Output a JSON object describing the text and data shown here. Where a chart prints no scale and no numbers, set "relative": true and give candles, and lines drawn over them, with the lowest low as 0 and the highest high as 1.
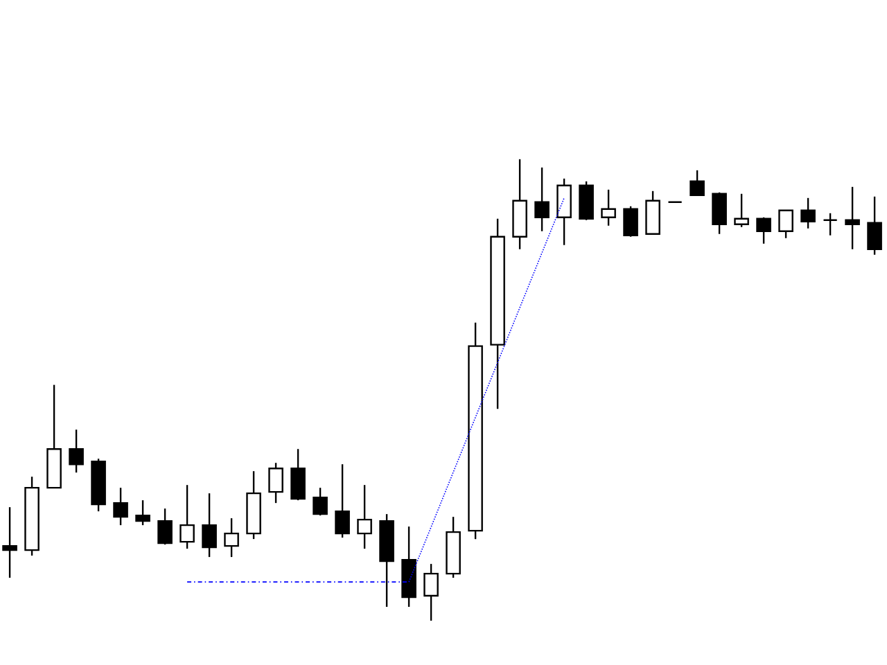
{
  "chart_data": {
    "type": "candlestick",
    "relative": true,
    "categories": [
      null,
      null,
      null,
      null,
      null,
      null,
      null,
      null,
      null,
      null,
      null,
      null,
      null,
      null,
      null,
      null,
      null,
      null,
      null,
      null,
      null,
      null,
      null,
      null,
      null,
      null,
      null,
      null,
      null,
      null,
      null,
      null,
      null,
      null,
      null,
      null,
      null,
      null,
      null,
      null
    ],
    "ohlc": [
      [
        0.162,
        0.246,
        0.093,
        0.153
      ],
      [
        0.153,
        0.312,
        0.141,
        0.288
      ],
      [
        0.288,
        0.511,
        0.288,
        0.372
      ],
      [
        0.372,
        0.414,
        0.321,
        0.339
      ],
      [
        0.345,
        0.351,
        0.237,
        0.252
      ],
      [
        0.255,
        0.288,
        0.207,
        0.225
      ],
      [
        0.228,
        0.261,
        0.207,
        0.216
      ],
      [
        0.216,
        0.243,
        0.165,
        0.168
      ],
      [
        0.171,
        0.294,
        0.156,
        0.207
      ],
      [
        0.207,
        0.276,
        0.138,
        0.159
      ],
      [
        0.162,
        0.222,
        0.138,
        0.189
      ],
      [
        0.189,
        0.324,
        0.177,
        0.276
      ],
      [
        0.279,
        0.342,
        0.255,
        0.33
      ],
      [
        0.33,
        0.372,
        0.261,
        0.264
      ],
      [
        0.267,
        0.288,
        0.228,
        0.231
      ],
      [
        0.237,
        0.339,
        0.18,
        0.189
      ],
      [
        0.189,
        0.294,
        0.156,
        0.219
      ],
      [
        0.216,
        0.231,
        0.03,
        0.129
      ],
      [
        0.132,
        0.204,
        0.03,
        0.051
      ],
      [
        0.054,
        0.123,
        0.0,
        0.102
      ],
      [
        0.102,
        0.225,
        0.093,
        0.192
      ],
      [
        0.195,
        0.646,
        0.177,
        0.595
      ],
      [
        0.598,
        0.871,
        0.459,
        0.832
      ],
      [
        0.832,
        1.0,
        0.805,
        0.91
      ],
      [
        0.907,
        0.982,
        0.844,
        0.874
      ],
      [
        0.874,
        0.958,
        0.814,
        0.943
      ],
      [
        0.943,
        0.952,
        0.868,
        0.871
      ],
      [
        0.874,
        0.934,
        0.856,
        0.892
      ],
      [
        0.892,
        0.898,
        0.832,
        0.835
      ],
      [
        0.838,
        0.931,
        0.838,
        0.91
      ],
      [
        0.907,
        0.907,
        0.907,
        0.907
      ],
      [
        0.952,
        0.976,
        0.922,
        0.922
      ],
      [
        0.925,
        0.928,
        0.838,
        0.859
      ],
      [
        0.859,
        0.925,
        0.853,
        0.871
      ],
      [
        0.871,
        0.874,
        0.817,
        0.844
      ],
      [
        0.844,
        0.889,
        0.829,
        0.889
      ],
      [
        0.889,
        0.916,
        0.85,
        0.865
      ],
      [
        0.868,
        0.883,
        0.835,
        0.868
      ],
      [
        0.868,
        0.94,
        0.805,
        0.859
      ],
      [
        0.862,
        0.919,
        0.793,
        0.805
      ]
    ],
    "series": [
      {
        "type": "line",
        "color": "#0000ff",
        "line_style": "dashed",
        "values": [
          null,
          null,
          null,
          null,
          null,
          null,
          null,
          null,
          0.084,
          null,
          null,
          null,
          null,
          null,
          null,
          null,
          null,
          null,
          0.084,
          null,
          null,
          null,
          null,
          null,
          null,
          null,
          null,
          null,
          null,
          null,
          null,
          null,
          null,
          null,
          null,
          null,
          null,
          null,
          null,
          null
        ]
      },
      {
        "type": "line",
        "color": "#0000ff",
        "line_style": "dotted",
        "values": [
          null,
          null,
          null,
          null,
          null,
          null,
          null,
          null,
          null,
          null,
          null,
          null,
          null,
          null,
          null,
          null,
          null,
          null,
          0.084,
          null,
          null,
          null,
          null,
          null,
          null,
          0.916,
          null,
          null,
          null,
          null,
          null,
          null,
          null,
          null,
          null,
          null,
          null,
          null,
          null,
          null
        ]
      }
    ]
  }
}
